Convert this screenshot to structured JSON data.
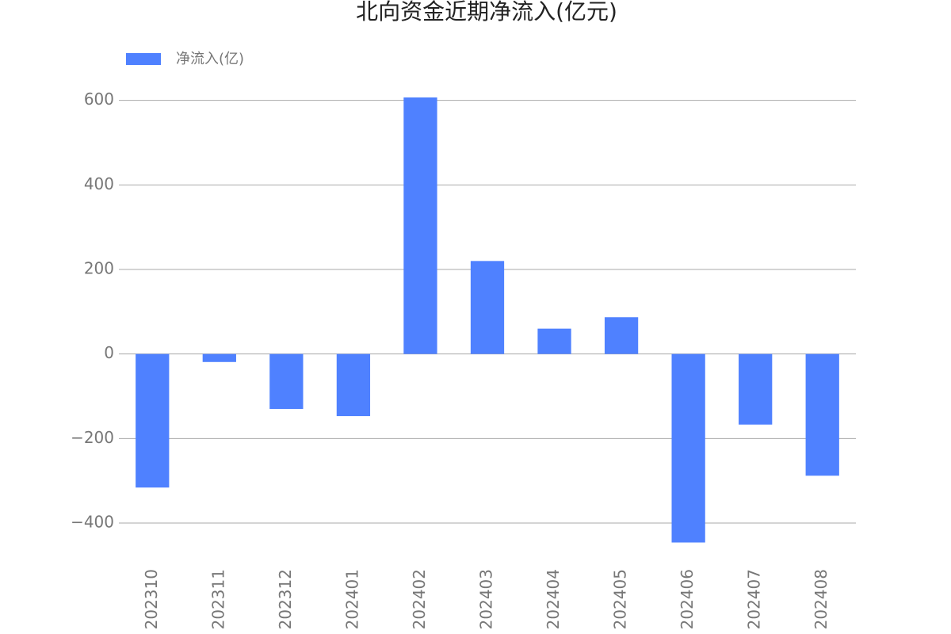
{
  "chart_data": {
    "type": "bar",
    "title": "北向资金近期净流入(亿元)",
    "categories": [
      "202310",
      "202311",
      "202312",
      "202401",
      "202402",
      "202403",
      "202404",
      "202405",
      "202406",
      "202407",
      "202408"
    ],
    "series": [
      {
        "name": "净流入(亿)",
        "color": "#4f81ff",
        "values": [
          -316,
          -19,
          -130,
          -147,
          607,
          220,
          60,
          87,
          -446,
          -167,
          -288
        ]
      }
    ],
    "ylim": [
      -475,
      650
    ],
    "yticks": [
      {
        "value": -400,
        "label": "−400"
      },
      {
        "value": -200,
        "label": "−200"
      },
      0,
      200,
      400,
      600
    ],
    "grid": true,
    "legend": "top-left"
  }
}
